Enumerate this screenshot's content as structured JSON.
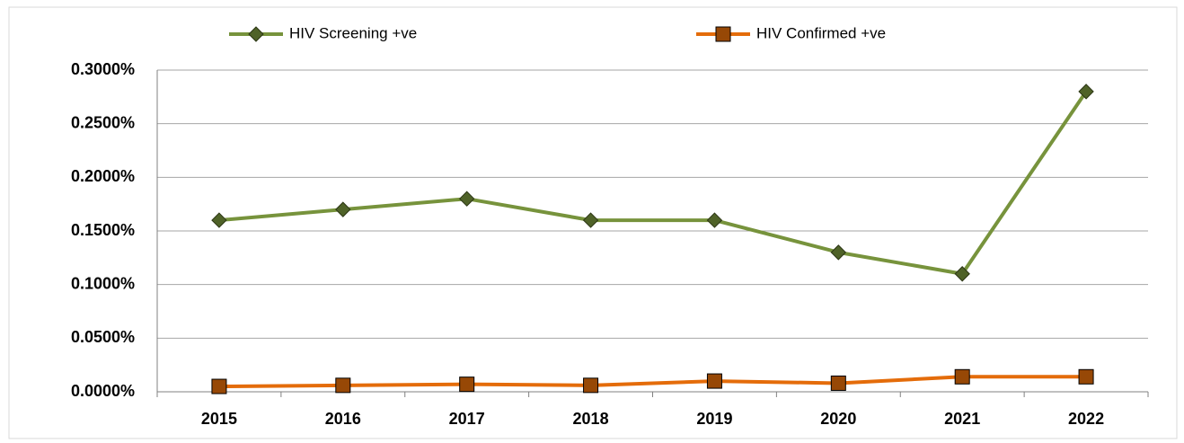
{
  "chart_data": {
    "type": "line",
    "categories": [
      "2015",
      "2016",
      "2017",
      "2018",
      "2019",
      "2020",
      "2021",
      "2022"
    ],
    "series": [
      {
        "name": "HIV Screening +ve",
        "color": "#77933c",
        "marker_color": "#4f6228",
        "marker": "diamond",
        "values": [
          0.16,
          0.17,
          0.18,
          0.16,
          0.16,
          0.13,
          0.11,
          0.28
        ]
      },
      {
        "name": "HIV Confirmed +ve",
        "color": "#e46c0a",
        "marker_color": "#974806",
        "marker": "square",
        "values": [
          0.005,
          0.006,
          0.007,
          0.006,
          0.01,
          0.008,
          0.014,
          0.014
        ]
      }
    ],
    "ylim": [
      0,
      0.3
    ],
    "yticks": [
      {
        "value": 0,
        "label": "0.0000%"
      },
      {
        "value": 0.05,
        "label": "0.0500%"
      },
      {
        "value": 0.1,
        "label": "0.1000%"
      },
      {
        "value": 0.15,
        "label": "0.1500%"
      },
      {
        "value": 0.2,
        "label": "0.2000%"
      },
      {
        "value": 0.25,
        "label": "0.2500%"
      },
      {
        "value": 0.3,
        "label": "0.3000%"
      }
    ],
    "grid": true,
    "legend": "top"
  }
}
